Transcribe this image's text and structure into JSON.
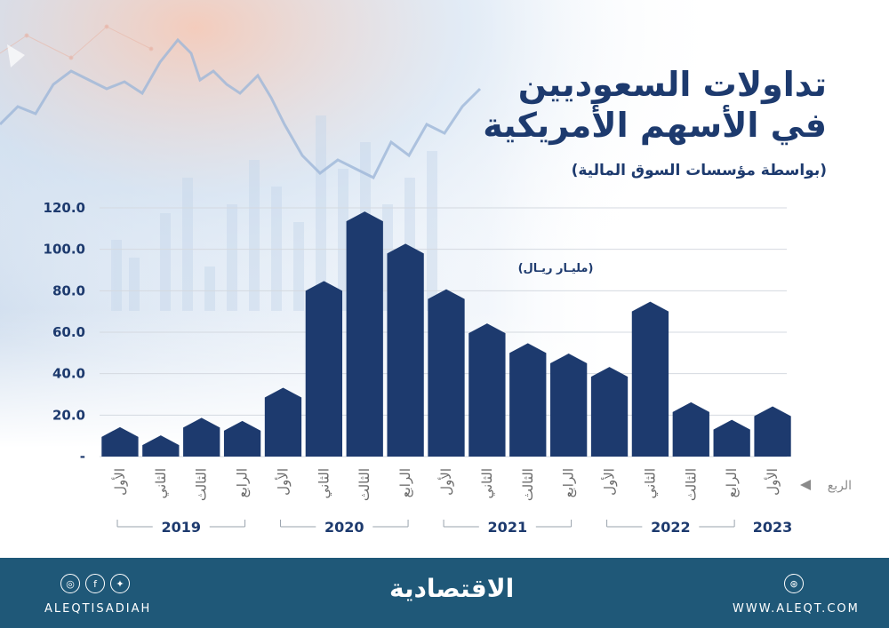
{
  "header": {
    "title_line1": "تداولات السعوديين",
    "title_line2": "في الأسهم الأمريكية",
    "subtitle": "(بواسطة مؤسسات السوق المالية)"
  },
  "chart_data": {
    "type": "bar",
    "unit_label": "(مليـار ريـال)",
    "x_axis_label": "الربع",
    "categories": [
      "الأول",
      "الثاني",
      "الثالث",
      "الرابع",
      "الأول",
      "الثاني",
      "الثالث",
      "الرابع",
      "الأول",
      "الثاني",
      "الثالث",
      "الرابع",
      "الأول",
      "الثاني",
      "الثالث",
      "الرابع",
      "الأول"
    ],
    "years": [
      {
        "label": "2019",
        "start": 0,
        "end": 3
      },
      {
        "label": "2020",
        "start": 4,
        "end": 7
      },
      {
        "label": "2021",
        "start": 8,
        "end": 11
      },
      {
        "label": "2022",
        "start": 12,
        "end": 15
      },
      {
        "label": "2023",
        "start": 16,
        "end": 16
      }
    ],
    "values": [
      9.5,
      5.5,
      14,
      12.5,
      28.5,
      80,
      113.5,
      98,
      76,
      59.5,
      50,
      45,
      38.5,
      70,
      21.5,
      13,
      19.5
    ],
    "ylim": [
      0,
      120
    ],
    "y_ticks": [
      "-",
      "20.0",
      "40.0",
      "60.0",
      "80.0",
      "100.0",
      "120.0"
    ],
    "grid": true,
    "bar_color": "#1d3a6e"
  },
  "footer": {
    "handle": "ALEQTISADIAH",
    "logo": "الاقتصادية",
    "website": "WWW.ALEQT.COM",
    "social_icons": [
      "instagram-icon",
      "facebook-icon",
      "twitter-icon"
    ],
    "web_icon": "dribbble-icon",
    "background": "#1f5878"
  }
}
